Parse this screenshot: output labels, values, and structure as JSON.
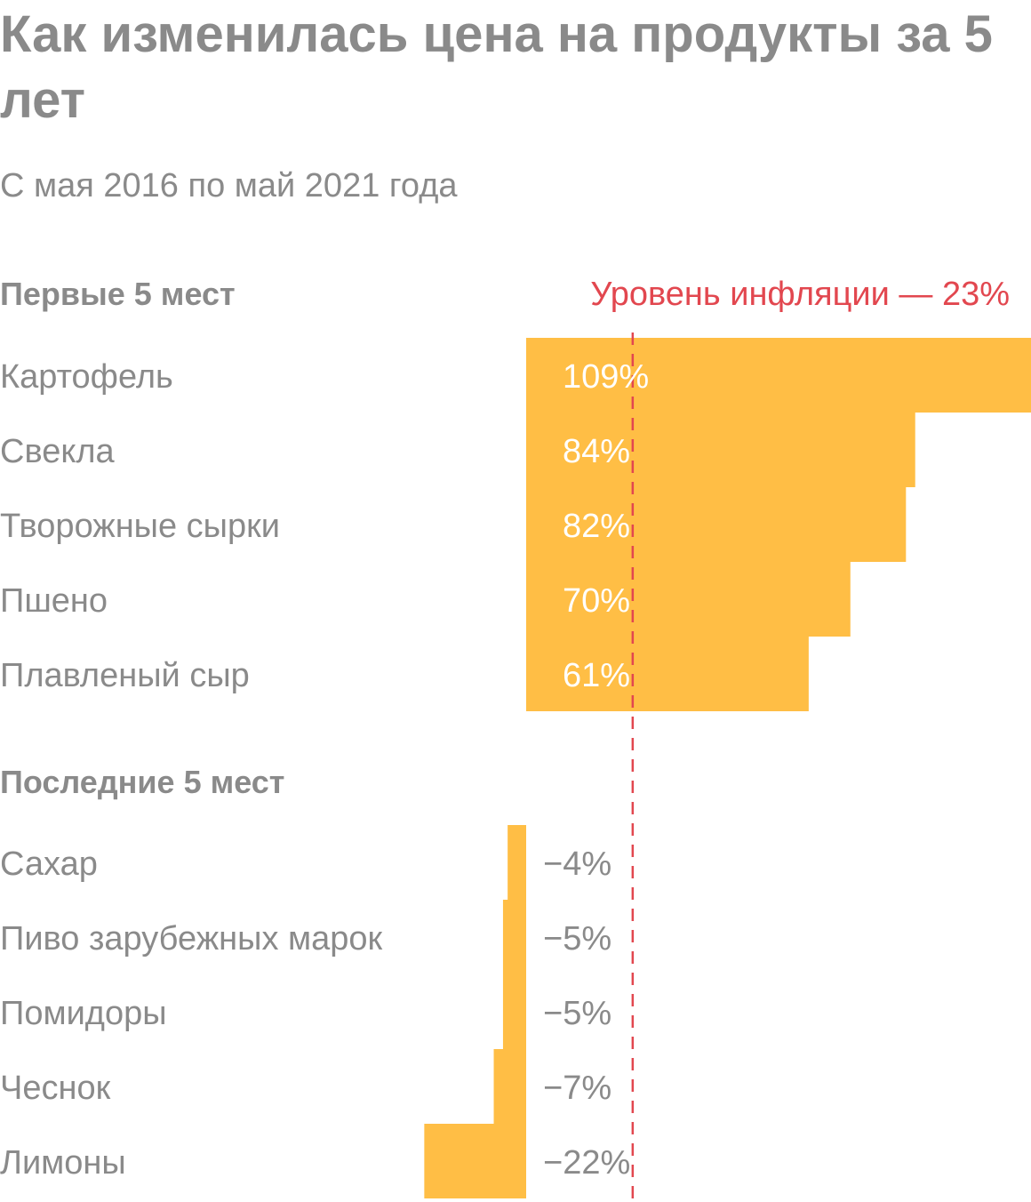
{
  "chart_data": {
    "type": "bar",
    "title": "Как изменилась цена на продукты за 5 лет",
    "subtitle": "С мая 2016 по май 2021 года",
    "unit": "%",
    "reference_line": {
      "value": 23,
      "label": "Уровень инфляции — 23%"
    },
    "groups": [
      {
        "name": "Первые 5 мест",
        "categories": [
          "Картофель",
          "Свекла",
          "Творожные сырки",
          "Пшено",
          "Плавленый сыр"
        ],
        "values": [
          109,
          84,
          82,
          70,
          61
        ],
        "value_labels": [
          "109%",
          "84%",
          "82%",
          "70%",
          "61%"
        ]
      },
      {
        "name": "Последние 5 мест",
        "categories": [
          "Сахар",
          "Пиво зарубежных марок",
          "Помидоры",
          "Чеснок",
          "Лимоны"
        ],
        "values": [
          -4,
          -5,
          -5,
          -7,
          -22
        ],
        "value_labels": [
          "−4%",
          "−5%",
          "−5%",
          "−7%",
          "−22%"
        ]
      }
    ],
    "colors": {
      "bar": "#ffbe45",
      "reference_line": "#e2474f",
      "text": "#8a8a8a"
    }
  }
}
